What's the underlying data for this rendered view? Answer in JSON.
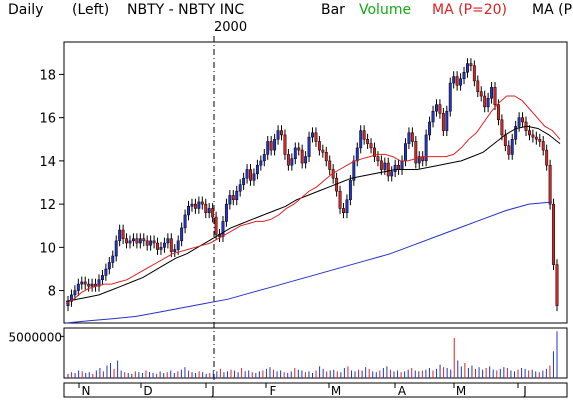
{
  "header": {
    "period": "Daily",
    "axis_side": "(Left)",
    "symbol_label": "NBTY - NBTY INC",
    "chart_style": "Bar",
    "volume_label": "Volume",
    "ma20_label": "MA (P=20)",
    "ma_label": "MA (P",
    "year_marker": "2000"
  },
  "colors": {
    "up_bar": "#2233cc",
    "down_bar": "#dd2222",
    "ma20": "#dd2222",
    "ma50": "#000000",
    "ma200": "#2233cc",
    "volume_label": "#11aa11",
    "ma20_label": "#dd2222"
  },
  "chart_data": [
    {
      "type": "candlestick",
      "title": "NBTY - NBTY INC",
      "y_ticks": [
        "8",
        "10",
        "12",
        "14",
        "16",
        "18"
      ],
      "ylim": [
        6.5,
        19.5
      ],
      "x_ticks": [
        "N",
        "D",
        "J",
        "F",
        "M",
        "A",
        "M",
        "J"
      ],
      "grid": false,
      "closes": [
        7.5,
        7.8,
        8.0,
        8.3,
        8.4,
        8.3,
        8.2,
        8.3,
        8.2,
        8.5,
        8.7,
        9.0,
        9.3,
        9.6,
        10.3,
        10.8,
        10.4,
        10.2,
        10.3,
        10.4,
        10.2,
        10.4,
        10.3,
        10.1,
        10.3,
        10.2,
        9.9,
        10.0,
        10.2,
        10.4,
        9.8,
        9.9,
        10.3,
        10.9,
        11.5,
        11.9,
        12.0,
        11.8,
        12.1,
        12.0,
        11.6,
        11.8,
        11.4,
        10.6,
        10.5,
        11.2,
        12.0,
        12.4,
        12.2,
        12.6,
        12.9,
        13.2,
        13.6,
        13.1,
        13.4,
        13.8,
        14.0,
        14.3,
        14.9,
        14.5,
        15.0,
        15.4,
        15.2,
        14.3,
        13.8,
        14.1,
        14.6,
        14.5,
        13.9,
        14.2,
        15.1,
        15.3,
        14.9,
        14.5,
        14.4,
        14.0,
        13.6,
        13.2,
        12.6,
        11.8,
        11.6,
        12.2,
        13.1,
        14.0,
        14.6,
        15.4,
        15.0,
        14.8,
        14.6,
        14.2,
        14.0,
        13.6,
        13.9,
        13.3,
        13.5,
        13.8,
        13.6,
        14.0,
        14.8,
        15.3,
        14.9,
        13.9,
        14.2,
        14.0,
        15.2,
        15.8,
        16.3,
        16.6,
        16.2,
        15.4,
        16.3,
        17.6,
        17.9,
        17.5,
        17.8,
        18.1,
        18.5,
        18.4,
        17.7,
        17.2,
        17.0,
        16.5,
        16.9,
        17.4,
        16.6,
        15.9,
        15.2,
        14.7,
        14.3,
        15.0,
        15.6,
        16.0,
        15.8,
        15.4,
        15.2,
        15.1,
        15.0,
        14.9,
        14.5,
        13.8,
        12.0,
        9.2,
        7.3
      ],
      "ma20": [
        7.4,
        7.6,
        7.9,
        8.1,
        8.2,
        8.3,
        8.3,
        8.4,
        8.5,
        8.7,
        8.9,
        9.1,
        9.3,
        9.5,
        9.7,
        9.8,
        9.9,
        10.0,
        10.1,
        10.2,
        10.4,
        10.6,
        10.8,
        11.0,
        11.1,
        11.2,
        11.2,
        11.3,
        11.5,
        11.8,
        12.0,
        12.3,
        12.6,
        12.8,
        13.1,
        13.4,
        13.6,
        13.8,
        14.0,
        14.1,
        14.2,
        14.3,
        14.3,
        14.2,
        14.0,
        14.0,
        14.1,
        14.2,
        14.2,
        14.2,
        14.2,
        14.3,
        14.6,
        15.0,
        15.3,
        15.8,
        16.3,
        16.7,
        17.0,
        17.0,
        16.8,
        16.4,
        16.0,
        15.6,
        15.4,
        15.0
      ],
      "ma50": [
        7.5,
        7.6,
        7.7,
        7.8,
        8.0,
        8.2,
        8.4,
        8.6,
        8.9,
        9.2,
        9.5,
        9.7,
        10.0,
        10.3,
        10.6,
        10.9,
        11.1,
        11.3,
        11.5,
        11.7,
        11.9,
        12.2,
        12.4,
        12.6,
        12.8,
        13.0,
        13.2,
        13.3,
        13.4,
        13.5,
        13.6,
        13.6,
        13.6,
        13.7,
        13.8,
        13.9,
        14.0,
        14.2,
        14.4,
        14.8,
        15.2,
        15.5,
        15.6,
        15.5,
        15.2,
        14.8
      ],
      "ma200": [
        6.5,
        6.6,
        6.7,
        6.8,
        7.0,
        7.2,
        7.4,
        7.6,
        7.9,
        8.2,
        8.5,
        8.8,
        9.1,
        9.4,
        9.7,
        10.1,
        10.5,
        10.9,
        11.3,
        11.7,
        12.0,
        12.1
      ]
    },
    {
      "type": "bar",
      "title": "Volume",
      "y_ticks": [
        "5000000"
      ],
      "ylim": [
        0,
        6000000
      ],
      "values": [
        500000,
        700000,
        600000,
        900000,
        800000,
        600000,
        700000,
        500000,
        900000,
        1200000,
        800000,
        1500000,
        1800000,
        1100000,
        2100000,
        900000,
        700000,
        600000,
        500000,
        800000,
        700000,
        600000,
        900000,
        700000,
        600000,
        500000,
        800000,
        600000,
        700000,
        900000,
        600000,
        800000,
        1000000,
        1300000,
        900000,
        700000,
        600000,
        800000,
        700000,
        500000,
        600000,
        900000,
        800000,
        1100000,
        700000,
        800000,
        1000000,
        900000,
        700000,
        1200000,
        800000,
        900000,
        700000,
        600000,
        800000,
        900000,
        1100000,
        1300000,
        1000000,
        800000,
        900000,
        700000,
        600000,
        800000,
        1200000,
        1000000,
        900000,
        700000,
        800000,
        600000,
        900000,
        1400000,
        1100000,
        800000,
        900000,
        1000000,
        800000,
        700000,
        1200000,
        1400000,
        900000,
        800000,
        1000000,
        900000,
        1300000,
        1100000,
        800000,
        700000,
        900000,
        1200000,
        1400000,
        1000000,
        800000,
        900000,
        700000,
        800000,
        1000000,
        1200000,
        900000,
        800000,
        900000,
        1000000,
        1200000,
        900000,
        1100000,
        1600000,
        1300000,
        1200000,
        1000000,
        4800000,
        2100000,
        1400000,
        1800000,
        1200000,
        1500000,
        1100000,
        1300000,
        1000000,
        1200000,
        1400000,
        1000000,
        900000,
        1100000,
        1300000,
        1200000,
        900000,
        800000,
        1000000,
        1200000,
        1100000,
        900000,
        1000000,
        800000,
        700000,
        900000,
        1100000,
        1500000,
        3200000,
        5600000
      ]
    }
  ]
}
